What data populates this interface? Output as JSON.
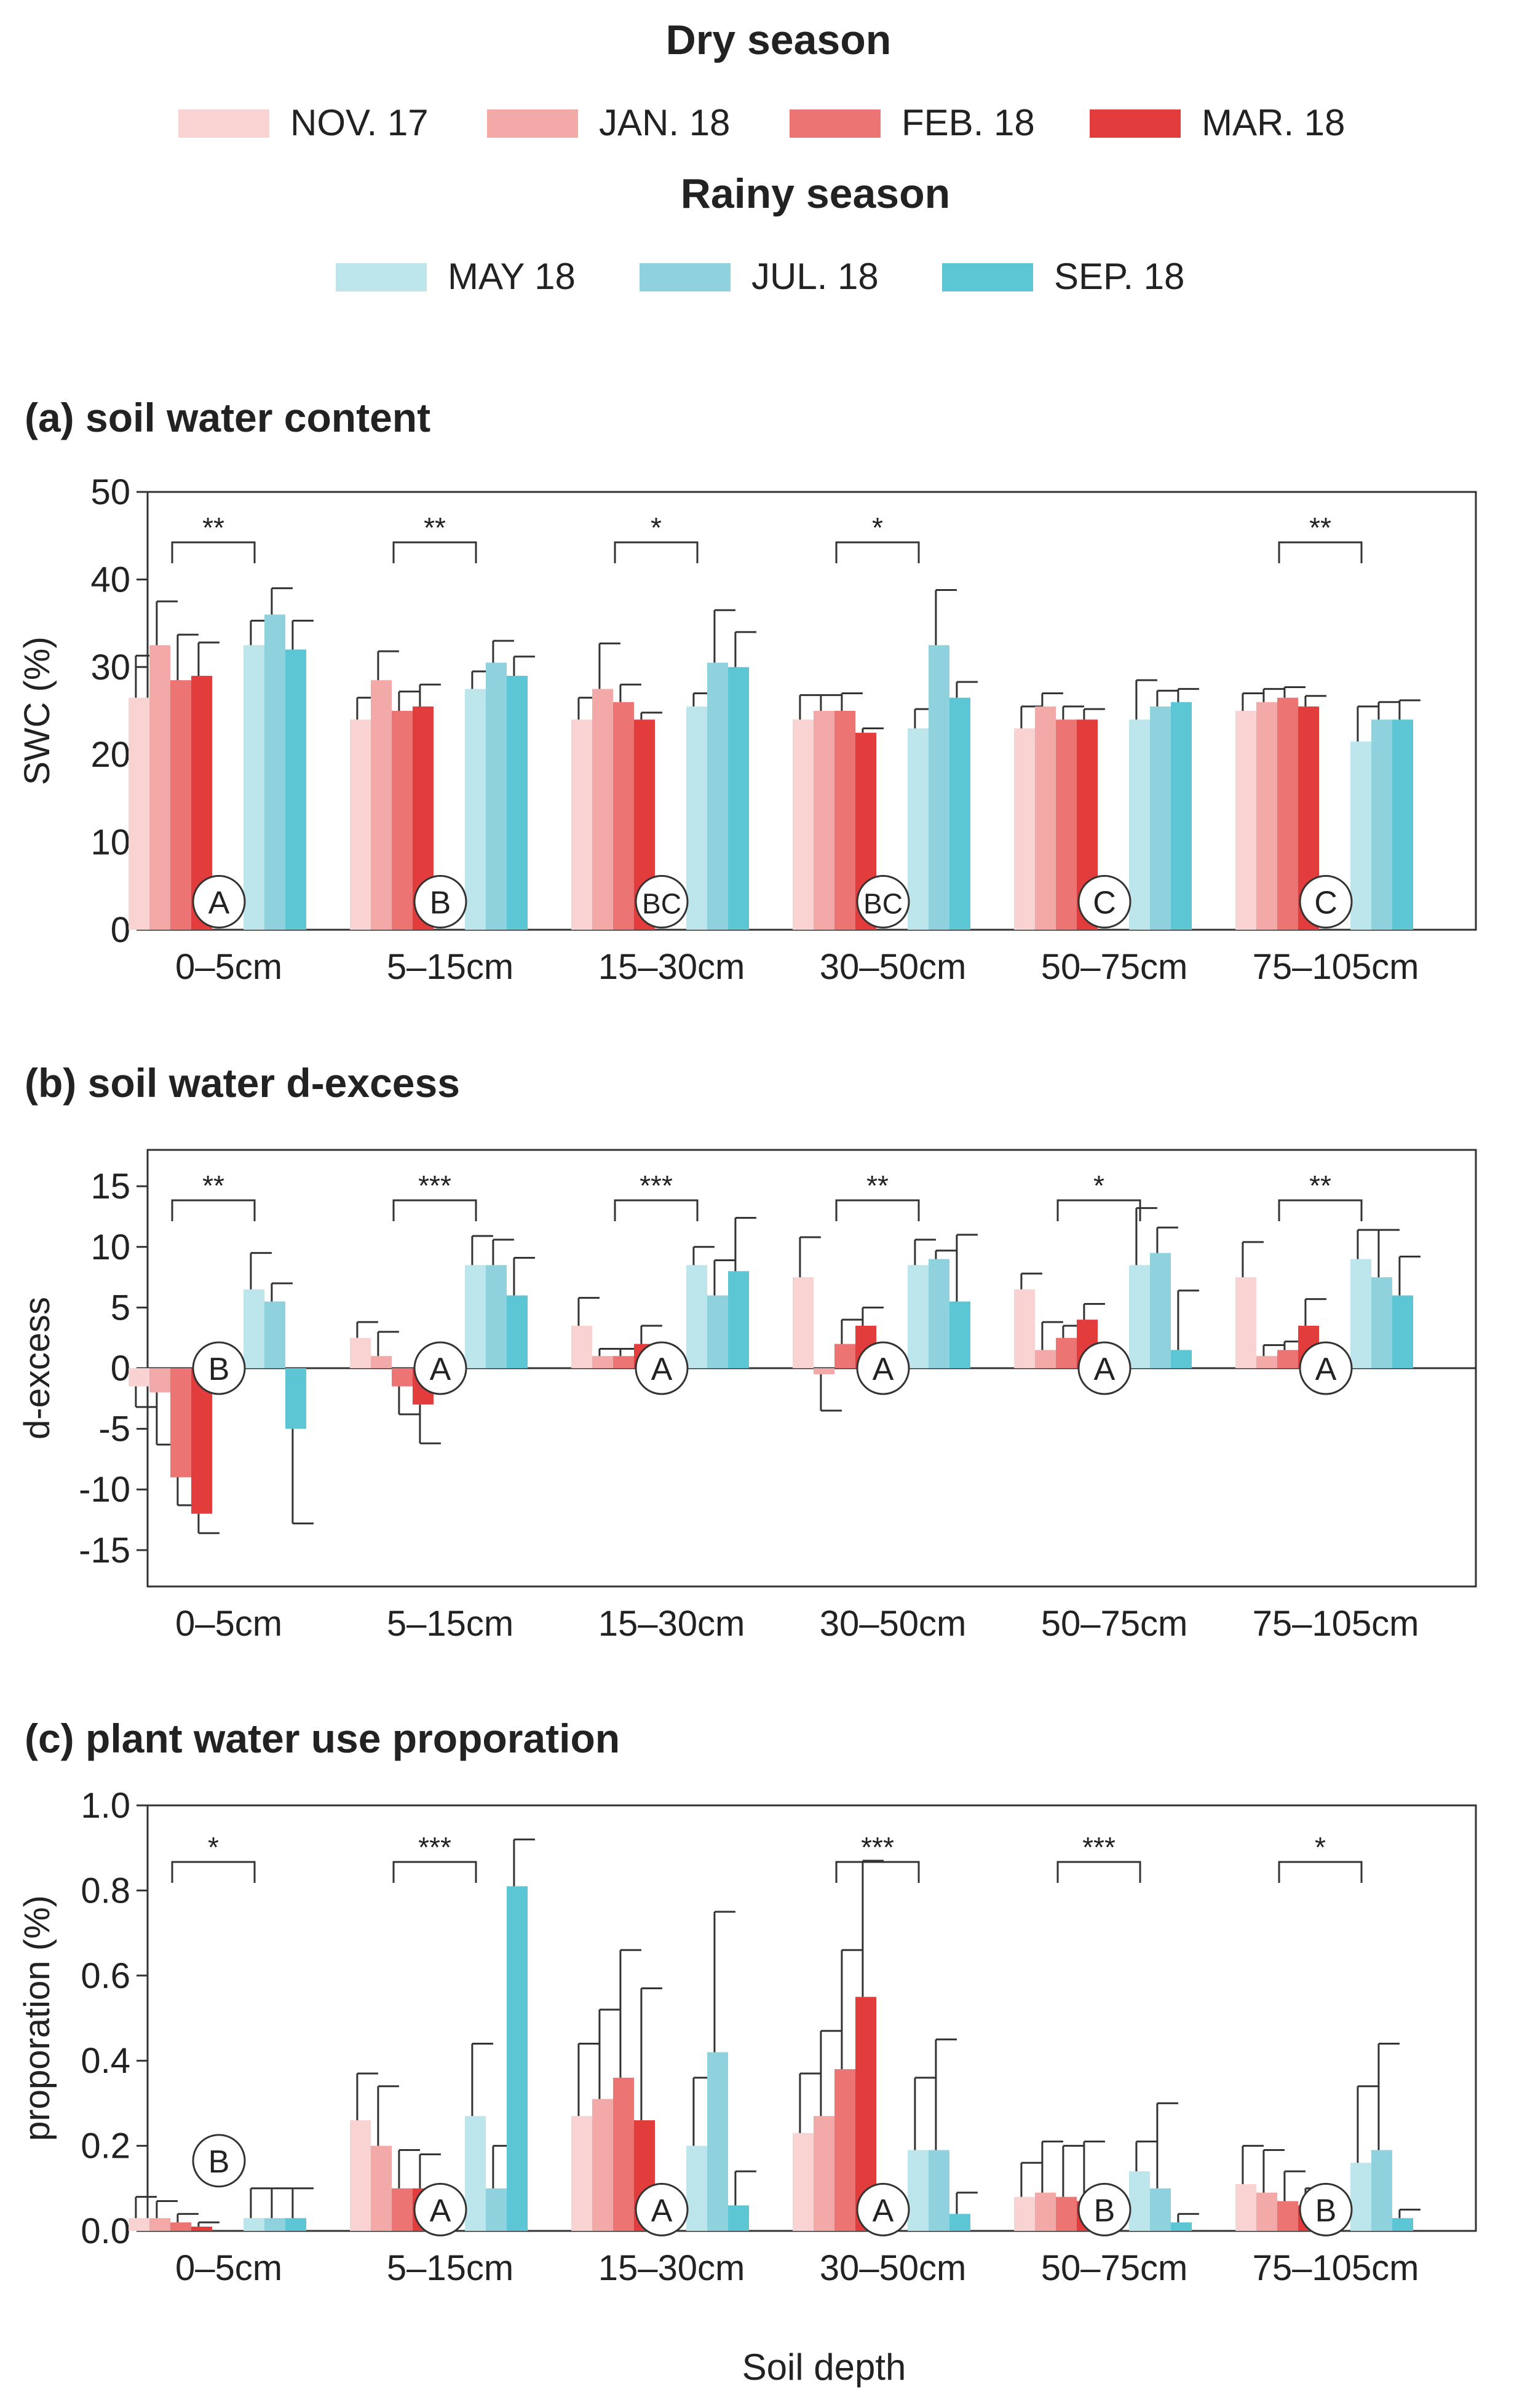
{
  "legend": {
    "dry_title": "Dry season",
    "rainy_title": "Rainy season",
    "dry": [
      {
        "label": "NOV. 17",
        "color": "#F9D3D2"
      },
      {
        "label": "JAN. 18",
        "color": "#F3A9A8"
      },
      {
        "label": "FEB. 18",
        "color": "#EC7473"
      },
      {
        "label": "MAR. 18",
        "color": "#E23C3C"
      }
    ],
    "rainy": [
      {
        "label": "MAY 18",
        "color": "#BDE5EC"
      },
      {
        "label": "JUL. 18",
        "color": "#8FD2DE"
      },
      {
        "label": "SEP. 18",
        "color": "#5DC6D5"
      }
    ]
  },
  "x_axis_label": "Soil depth",
  "chart_data": [
    {
      "id": "a",
      "type": "bar",
      "title": "(a) soil water content",
      "ylabel": "SWC (%)",
      "ylim": [
        0,
        50
      ],
      "yticks": [
        0,
        10,
        20,
        30,
        40,
        50
      ],
      "categories": [
        "0–5cm",
        "5–15cm",
        "15–30cm",
        "30–50cm",
        "50–75cm",
        "75–105cm"
      ],
      "series": [
        {
          "name": "NOV. 17",
          "values": [
            26.5,
            24.0,
            24.0,
            24.0,
            23.0,
            25.0
          ],
          "errors": [
            4.8,
            2.5,
            2.5,
            2.8,
            2.5,
            2.0
          ]
        },
        {
          "name": "JAN. 18",
          "values": [
            32.5,
            28.5,
            27.5,
            25.0,
            25.5,
            26.0
          ],
          "errors": [
            5.0,
            3.3,
            5.2,
            1.8,
            1.5,
            1.5
          ]
        },
        {
          "name": "FEB. 18",
          "values": [
            28.5,
            25.0,
            26.0,
            25.0,
            24.0,
            26.5
          ],
          "errors": [
            5.2,
            2.2,
            2.0,
            2.0,
            1.5,
            1.2
          ]
        },
        {
          "name": "MAR. 18",
          "values": [
            29.0,
            25.5,
            24.0,
            22.5,
            24.0,
            25.5
          ],
          "errors": [
            3.8,
            2.5,
            0.8,
            0.5,
            1.2,
            1.2
          ]
        },
        {
          "name": "MAY 18",
          "values": [
            32.5,
            27.5,
            25.5,
            23.0,
            24.0,
            21.5
          ],
          "errors": [
            2.8,
            2.0,
            1.5,
            2.2,
            4.5,
            4.0
          ]
        },
        {
          "name": "JUL. 18",
          "values": [
            36.0,
            30.5,
            30.5,
            32.5,
            25.5,
            24.0
          ],
          "errors": [
            3.0,
            2.5,
            6.0,
            6.3,
            1.8,
            2.0
          ]
        },
        {
          "name": "SEP. 18",
          "values": [
            32.0,
            29.0,
            30.0,
            26.5,
            26.0,
            24.0
          ],
          "errors": [
            3.3,
            2.2,
            4.0,
            1.8,
            1.5,
            2.2
          ]
        }
      ],
      "significance": [
        "**",
        "**",
        "*",
        "*",
        "",
        "**"
      ],
      "letters": [
        "A",
        "B",
        "BC",
        "BC",
        "C",
        "C"
      ],
      "letter_y": 3.2
    },
    {
      "id": "b",
      "type": "bar",
      "title": "(b) soil water d-excess",
      "ylabel": "d-excess",
      "ylim": [
        -18,
        18
      ],
      "yticks": [
        -15,
        -10,
        -5,
        0,
        5,
        10,
        15
      ],
      "zero_line": true,
      "categories": [
        "0–5cm",
        "5–15cm",
        "15–30cm",
        "30–50cm",
        "50–75cm",
        "75–105cm"
      ],
      "series": [
        {
          "name": "NOV. 17",
          "values": [
            -1.5,
            2.5,
            3.5,
            7.5,
            6.5,
            7.5
          ],
          "errors": [
            1.7,
            1.3,
            2.3,
            3.3,
            1.3,
            2.9
          ]
        },
        {
          "name": "JAN. 18",
          "values": [
            -2.0,
            1.0,
            1.0,
            -0.5,
            1.5,
            1.0
          ],
          "errors": [
            4.3,
            2.0,
            0.6,
            3.0,
            2.3,
            0.9
          ]
        },
        {
          "name": "FEB. 18",
          "values": [
            -9.0,
            -1.5,
            1.0,
            2.0,
            2.5,
            1.5
          ],
          "errors": [
            2.3,
            2.3,
            0.6,
            2.0,
            1.0,
            0.7
          ]
        },
        {
          "name": "MAR. 18",
          "values": [
            -12.0,
            -3.0,
            2.0,
            3.5,
            4.0,
            3.5
          ],
          "errors": [
            1.6,
            3.2,
            1.5,
            1.5,
            1.3,
            2.2
          ]
        },
        {
          "name": "MAY 18",
          "values": [
            6.5,
            8.5,
            8.5,
            8.5,
            8.5,
            9.0
          ],
          "errors": [
            3.0,
            2.4,
            1.5,
            2.1,
            4.7,
            2.4
          ]
        },
        {
          "name": "JUL. 18",
          "values": [
            5.5,
            8.5,
            6.0,
            9.0,
            9.5,
            7.5
          ],
          "errors": [
            1.5,
            2.1,
            2.9,
            0.7,
            2.1,
            3.9
          ]
        },
        {
          "name": "SEP. 18",
          "values": [
            -5.0,
            6.0,
            8.0,
            5.5,
            1.5,
            6.0
          ],
          "errors": [
            7.8,
            3.1,
            4.4,
            5.5,
            4.9,
            3.2
          ]
        }
      ],
      "significance": [
        "**",
        "***",
        "***",
        "**",
        "*",
        "**"
      ],
      "letters": [
        "B",
        "A",
        "A",
        "A",
        "A",
        "A"
      ],
      "letter_y": 0
    },
    {
      "id": "c",
      "type": "bar",
      "title": "(c) plant water use proporation",
      "ylabel": "proporation (%)",
      "ylim": [
        0,
        1.0
      ],
      "yticks": [
        0.0,
        0.2,
        0.4,
        0.6,
        0.8,
        1.0
      ],
      "tick_decimals": 1,
      "categories": [
        "0–5cm",
        "5–15cm",
        "15–30cm",
        "30–50cm",
        "50–75cm",
        "75–105cm"
      ],
      "series": [
        {
          "name": "NOV. 17",
          "values": [
            0.03,
            0.26,
            0.27,
            0.23,
            0.08,
            0.11
          ],
          "errors": [
            0.05,
            0.11,
            0.17,
            0.14,
            0.08,
            0.09
          ]
        },
        {
          "name": "JAN. 18",
          "values": [
            0.03,
            0.2,
            0.31,
            0.27,
            0.09,
            0.09
          ],
          "errors": [
            0.04,
            0.14,
            0.21,
            0.2,
            0.12,
            0.1
          ]
        },
        {
          "name": "FEB. 18",
          "values": [
            0.02,
            0.1,
            0.36,
            0.38,
            0.08,
            0.07
          ],
          "errors": [
            0.02,
            0.09,
            0.3,
            0.28,
            0.12,
            0.07
          ]
        },
        {
          "name": "MAR. 18",
          "values": [
            0.01,
            0.1,
            0.26,
            0.55,
            0.07,
            0.06
          ],
          "errors": [
            0.01,
            0.08,
            0.31,
            0.32,
            0.14,
            0.04
          ]
        },
        {
          "name": "MAY 18",
          "values": [
            0.03,
            0.27,
            0.2,
            0.19,
            0.14,
            0.16
          ],
          "errors": [
            0.07,
            0.17,
            0.16,
            0.17,
            0.07,
            0.18
          ]
        },
        {
          "name": "JUL. 18",
          "values": [
            0.03,
            0.1,
            0.42,
            0.19,
            0.1,
            0.19
          ],
          "errors": [
            0.07,
            0.1,
            0.33,
            0.26,
            0.2,
            0.25
          ]
        },
        {
          "name": "SEP. 18",
          "values": [
            0.03,
            0.81,
            0.06,
            0.04,
            0.02,
            0.03
          ],
          "errors": [
            0.07,
            0.11,
            0.08,
            0.05,
            0.02,
            0.02
          ]
        }
      ],
      "significance": [
        "*",
        "***",
        "",
        "***",
        "***",
        "*"
      ],
      "letters": [
        "",
        "A",
        "A",
        "A",
        "B",
        "B"
      ],
      "letter_y": 0.018,
      "extra_letters": [
        {
          "group": 0,
          "text": "B",
          "y": 0.165
        }
      ]
    }
  ]
}
